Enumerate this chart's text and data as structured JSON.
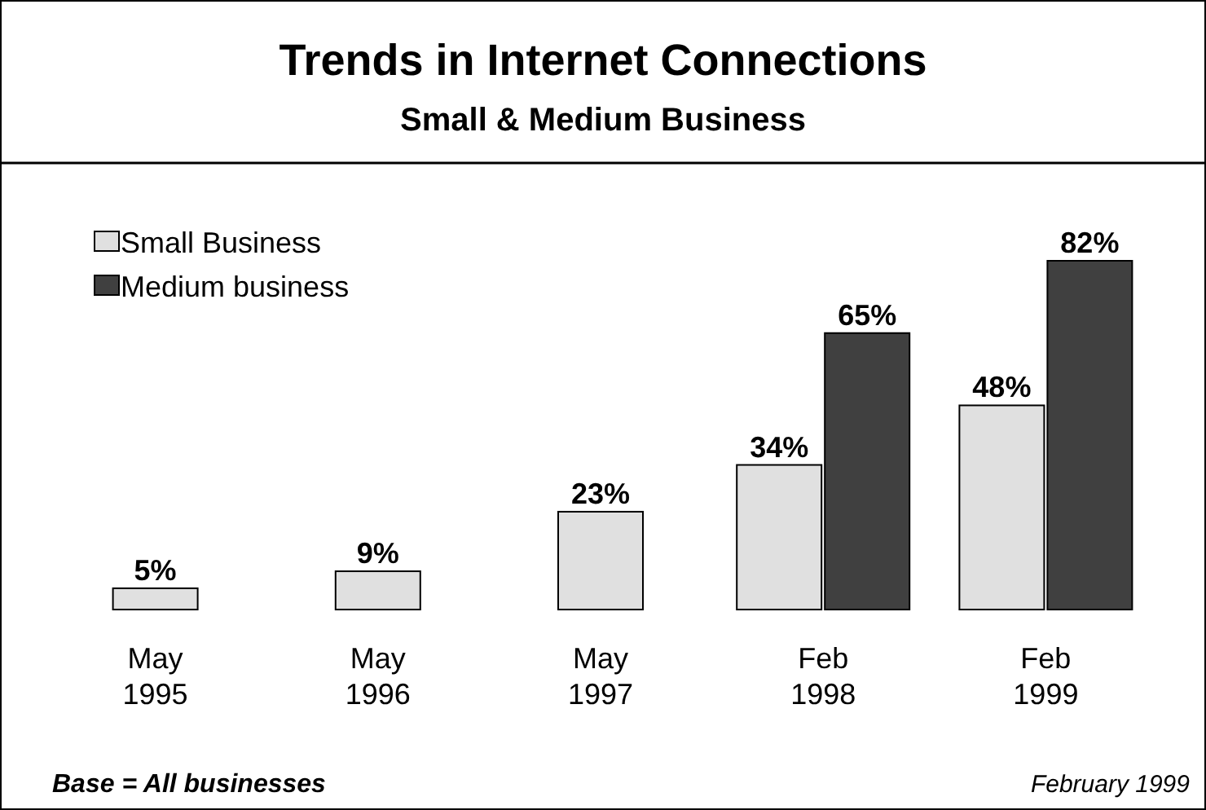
{
  "chart_data": {
    "type": "bar",
    "title": "Trends in Internet Connections",
    "subtitle": "Small & Medium Business",
    "categories": [
      "May 1995",
      "May 1996",
      "May 1997",
      "Feb 1998",
      "Feb 1999"
    ],
    "series": [
      {
        "name": "Small Business",
        "color": "#e0e0e0",
        "values": [
          5,
          9,
          23,
          34,
          48
        ],
        "value_labels": [
          "5%",
          "9%",
          "23%",
          "34%",
          "48%"
        ]
      },
      {
        "name": "Medium business",
        "color": "#404040",
        "values": [
          null,
          null,
          null,
          65,
          82
        ],
        "value_labels": [
          null,
          null,
          null,
          "65%",
          "82%"
        ]
      }
    ],
    "legend": "top left",
    "grid": false,
    "annotations": [
      "Base = All businesses",
      "February 1999"
    ]
  }
}
